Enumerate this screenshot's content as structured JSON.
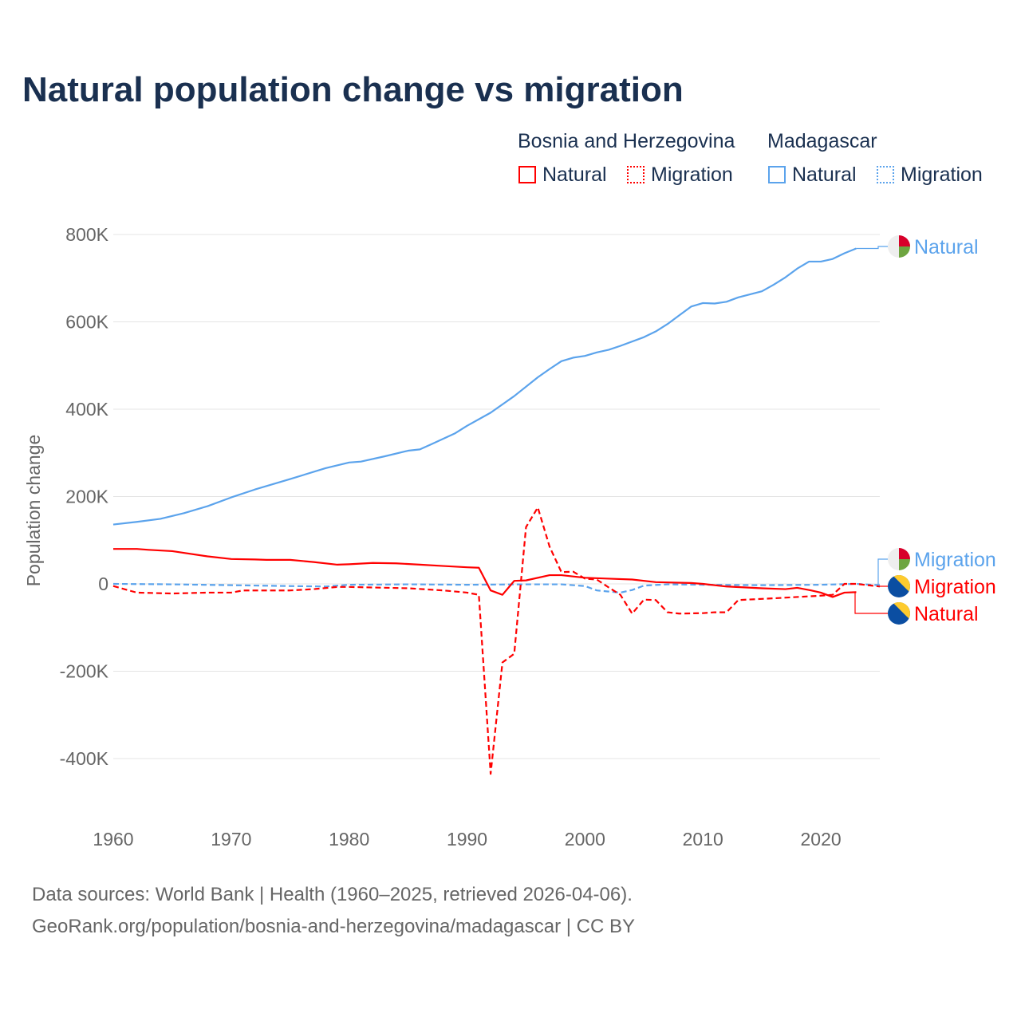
{
  "title": "Natural population change vs migration",
  "legend": {
    "groups": [
      {
        "name": "Bosnia and Herzegovina",
        "items": [
          "Natural",
          "Migration"
        ],
        "color": "#ff0000"
      },
      {
        "name": "Madagascar",
        "items": [
          "Natural",
          "Migration"
        ],
        "color": "#5ba3ec"
      }
    ]
  },
  "footer": {
    "line1": "Data sources: World Bank | Health (1960–2025, retrieved 2026-04-06).",
    "line2": "GeoRank.org/population/bosnia-and-herzegovina/madagascar | CC BY"
  },
  "chart_data": {
    "type": "line",
    "title": "Natural population change vs migration",
    "ylabel": "Population change",
    "xlabel": "",
    "xlim": [
      1960,
      2025
    ],
    "ylim": [
      -400000,
      800000
    ],
    "x_ticks": [
      "1960",
      "1970",
      "1980",
      "1990",
      "2000",
      "2010",
      "2020"
    ],
    "y_ticks": [
      {
        "v": 800000,
        "l": "800K"
      },
      {
        "v": 600000,
        "l": "600K"
      },
      {
        "v": 400000,
        "l": "400K"
      },
      {
        "v": 200000,
        "l": "200K"
      },
      {
        "v": 0,
        "l": "0"
      },
      {
        "v": -200000,
        "l": "-200K"
      },
      {
        "v": -400000,
        "l": "-400K"
      }
    ],
    "series": [
      {
        "name": "Madagascar Natural",
        "end_label": "Natural",
        "color": "#5ba3ec",
        "dash": false,
        "points": [
          [
            1960,
            136
          ],
          [
            1962,
            142
          ],
          [
            1964,
            149
          ],
          [
            1966,
            162
          ],
          [
            1968,
            178
          ],
          [
            1970,
            198
          ],
          [
            1972,
            216
          ],
          [
            1975,
            240
          ],
          [
            1978,
            265
          ],
          [
            1980,
            278
          ],
          [
            1981,
            280
          ],
          [
            1983,
            292
          ],
          [
            1985,
            305
          ],
          [
            1986,
            308
          ],
          [
            1987,
            320
          ],
          [
            1989,
            345
          ],
          [
            1990,
            362
          ],
          [
            1992,
            392
          ],
          [
            1994,
            430
          ],
          [
            1996,
            473
          ],
          [
            1997,
            492
          ],
          [
            1998,
            510
          ],
          [
            1999,
            518
          ],
          [
            2000,
            522
          ],
          [
            2001,
            530
          ],
          [
            2002,
            536
          ],
          [
            2003,
            545
          ],
          [
            2005,
            565
          ],
          [
            2006,
            578
          ],
          [
            2007,
            595
          ],
          [
            2008,
            615
          ],
          [
            2009,
            635
          ],
          [
            2010,
            643
          ],
          [
            2011,
            642
          ],
          [
            2012,
            646
          ],
          [
            2013,
            656
          ],
          [
            2015,
            670
          ],
          [
            2016,
            685
          ],
          [
            2017,
            702
          ],
          [
            2018,
            722
          ],
          [
            2019,
            738
          ],
          [
            2020,
            738
          ],
          [
            2021,
            744
          ],
          [
            2022,
            757
          ],
          [
            2023,
            768
          ]
        ]
      },
      {
        "name": "Madagascar Migration",
        "end_label": "Migration",
        "color": "#5ba3ec",
        "dash": true,
        "points": [
          [
            1960,
            0
          ],
          [
            1965,
            -1
          ],
          [
            1970,
            -3
          ],
          [
            1975,
            -5
          ],
          [
            1978,
            -6
          ],
          [
            1980,
            -2
          ],
          [
            1985,
            -1
          ],
          [
            1990,
            -2
          ],
          [
            1995,
            -1
          ],
          [
            1998,
            -1
          ],
          [
            2000,
            -5
          ],
          [
            2001,
            -15
          ],
          [
            2003,
            -20
          ],
          [
            2004,
            -14
          ],
          [
            2005,
            -4
          ],
          [
            2007,
            -1
          ],
          [
            2010,
            -2
          ],
          [
            2015,
            -3
          ],
          [
            2020,
            -2
          ],
          [
            2023,
            0
          ],
          [
            2025,
            -3
          ]
        ]
      },
      {
        "name": "Bosnia and Herzegovina Migration",
        "end_label": "Migration",
        "color": "#ff0000",
        "dash": true,
        "points": [
          [
            1960,
            -5
          ],
          [
            1962,
            -20
          ],
          [
            1965,
            -22
          ],
          [
            1968,
            -20
          ],
          [
            1970,
            -20
          ],
          [
            1971,
            -15
          ],
          [
            1975,
            -15
          ],
          [
            1977,
            -12
          ],
          [
            1979,
            -7
          ],
          [
            1980,
            -7
          ],
          [
            1985,
            -10
          ],
          [
            1988,
            -15
          ],
          [
            1990,
            -20
          ],
          [
            1991,
            -25
          ],
          [
            1992,
            -435
          ],
          [
            1993,
            -180
          ],
          [
            1994,
            -160
          ],
          [
            1995,
            130
          ],
          [
            1996,
            175
          ],
          [
            1997,
            85
          ],
          [
            1998,
            27
          ],
          [
            1999,
            28
          ],
          [
            2000,
            12
          ],
          [
            2001,
            10
          ],
          [
            2002,
            -8
          ],
          [
            2003,
            -25
          ],
          [
            2004,
            -68
          ],
          [
            2005,
            -36
          ],
          [
            2006,
            -37
          ],
          [
            2007,
            -65
          ],
          [
            2008,
            -68
          ],
          [
            2010,
            -67
          ],
          [
            2011,
            -65
          ],
          [
            2012,
            -65
          ],
          [
            2013,
            -37
          ],
          [
            2016,
            -33
          ],
          [
            2020,
            -27
          ],
          [
            2021,
            -25
          ],
          [
            2022,
            0
          ],
          [
            2023,
            0
          ],
          [
            2025,
            -6
          ]
        ]
      },
      {
        "name": "Bosnia and Herzegovina Natural",
        "end_label": "Natural",
        "color": "#ff0000",
        "dash": false,
        "points": [
          [
            1960,
            80
          ],
          [
            1962,
            80
          ],
          [
            1963,
            78
          ],
          [
            1965,
            75
          ],
          [
            1968,
            63
          ],
          [
            1970,
            57
          ],
          [
            1972,
            56
          ],
          [
            1973,
            55
          ],
          [
            1975,
            55
          ],
          [
            1977,
            50
          ],
          [
            1979,
            44
          ],
          [
            1980,
            45
          ],
          [
            1982,
            48
          ],
          [
            1984,
            47
          ],
          [
            1986,
            44
          ],
          [
            1988,
            41
          ],
          [
            1990,
            38
          ],
          [
            1991,
            37
          ],
          [
            1992,
            -15
          ],
          [
            1993,
            -25
          ],
          [
            1994,
            7
          ],
          [
            1995,
            8
          ],
          [
            1997,
            20
          ],
          [
            1998,
            20
          ],
          [
            2000,
            14
          ],
          [
            2002,
            12
          ],
          [
            2004,
            10
          ],
          [
            2006,
            4
          ],
          [
            2009,
            2
          ],
          [
            2010,
            0
          ],
          [
            2012,
            -6
          ],
          [
            2015,
            -10
          ],
          [
            2017,
            -12
          ],
          [
            2018,
            -9
          ],
          [
            2019,
            -14
          ],
          [
            2020,
            -20
          ],
          [
            2021,
            -30
          ],
          [
            2022,
            -20
          ],
          [
            2023,
            -19
          ]
        ]
      }
    ]
  }
}
